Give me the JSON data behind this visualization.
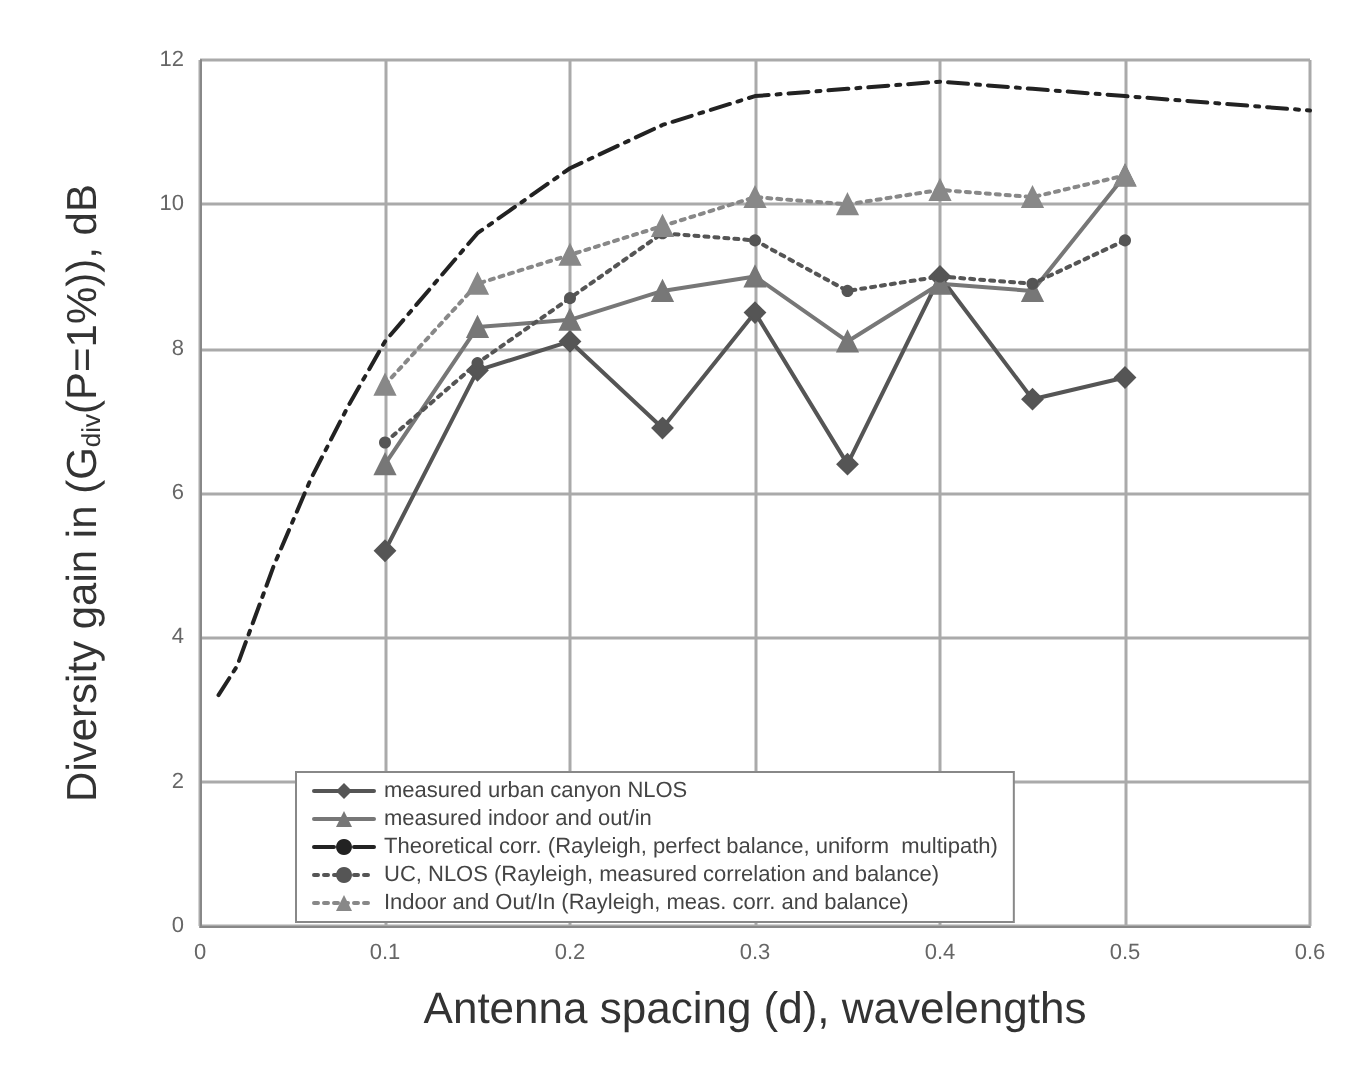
{
  "chart_data": {
    "type": "line",
    "xlabel": "Antenna spacing (d), wavelengths",
    "ylabel": "Diversity gain in (G$_{div}$(P=1%)), dB",
    "xlim": [
      0,
      0.6
    ],
    "xticks": [
      0,
      0.1,
      0.2,
      0.3,
      0.4,
      0.5,
      0.6
    ],
    "ylim": [
      0,
      12
    ],
    "yticks": [
      0,
      2,
      4,
      6,
      8,
      10,
      12
    ],
    "grid": true,
    "legend": "bottom",
    "series": [
      {
        "name": "measured urban canyon NLOS",
        "color": "#555555",
        "marker": "diamond",
        "line_style": "solid",
        "x": [
          0.1,
          0.15,
          0.2,
          0.25,
          0.3,
          0.35,
          0.4,
          0.45,
          0.5
        ],
        "values": [
          5.2,
          7.7,
          8.1,
          6.9,
          8.5,
          6.4,
          9.0,
          7.3,
          7.6
        ]
      },
      {
        "name": "measured indoor and out/in",
        "color": "#777777",
        "marker": "triangle",
        "line_style": "solid",
        "x": [
          0.1,
          0.15,
          0.2,
          0.25,
          0.3,
          0.35,
          0.4,
          0.45,
          0.5
        ],
        "values": [
          6.4,
          8.3,
          8.4,
          8.8,
          9.0,
          8.1,
          8.9,
          8.8,
          10.4
        ]
      },
      {
        "name": "Theoretical corr. (Rayleigh, perfect balance, uniform  multipath)",
        "color": "#222222",
        "marker": "none",
        "line_style": "dashed",
        "x": [
          0.01,
          0.02,
          0.04,
          0.06,
          0.08,
          0.1,
          0.15,
          0.2,
          0.25,
          0.3,
          0.35,
          0.4,
          0.45,
          0.5,
          0.55,
          0.6
        ],
        "values": [
          3.2,
          3.6,
          5.0,
          6.2,
          7.2,
          8.1,
          9.6,
          10.5,
          11.1,
          11.5,
          11.6,
          11.7,
          11.6,
          11.5,
          11.4,
          11.3
        ]
      },
      {
        "name": "UC, NLOS (Rayleigh, measured correlation and balance)",
        "color": "#555555",
        "marker": "circle",
        "line_style": "dotted",
        "x": [
          0.1,
          0.15,
          0.2,
          0.25,
          0.3,
          0.35,
          0.4,
          0.45,
          0.5
        ],
        "values": [
          6.7,
          7.8,
          8.7,
          9.6,
          9.5,
          8.8,
          9.0,
          8.9,
          9.5
        ]
      },
      {
        "name": "Indoor and Out/In (Rayleigh, meas. corr. and balance)",
        "color": "#888888",
        "marker": "triangle",
        "line_style": "dotted",
        "x": [
          0.1,
          0.15,
          0.2,
          0.25,
          0.3,
          0.35,
          0.4,
          0.45,
          0.5
        ],
        "values": [
          7.5,
          8.9,
          9.3,
          9.7,
          10.1,
          10.0,
          10.2,
          10.1,
          10.4
        ]
      }
    ]
  }
}
